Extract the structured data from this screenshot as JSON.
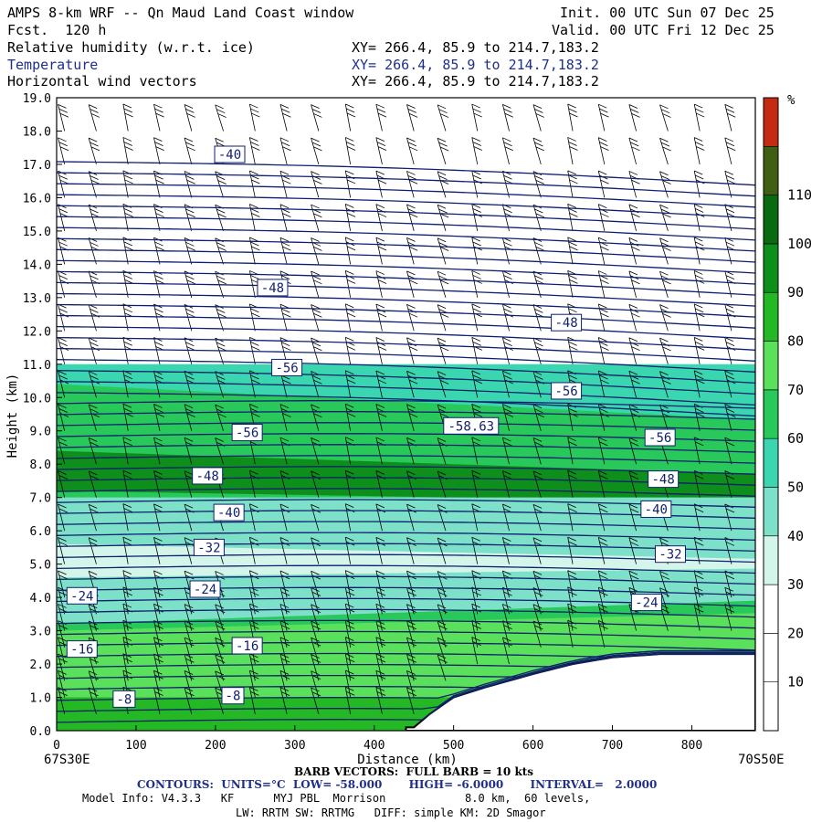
{
  "header": {
    "title_left": "AMPS 8-km WRF -- Qn Maud Land Coast window",
    "forecast": "Fcst.  120 h",
    "init": "Init. 00 UTC Sun 07 Dec 25",
    "valid": "Valid. 00 UTC Fri 12 Dec 25",
    "fields": [
      {
        "name": "Relative humidity (w.r.t. ice)",
        "xy": "XY= 266.4, 85.9 to 214.7,183.2"
      },
      {
        "name": "Temperature",
        "xy": "XY= 266.4, 85.9 to 214.7,183.2"
      },
      {
        "name": "Horizontal wind vectors",
        "xy": "XY= 266.4, 85.9 to 214.7,183.2"
      }
    ]
  },
  "footer": {
    "x_start": "67S30E",
    "x_end": "70S50E",
    "barb": "BARB VECTORS:  FULL BARB = 10 kts",
    "contours": "CONTOURS:  UNITS=°C  LOW= -58.000       HIGH= -6.0000       INTERVAL=   2.0000",
    "model_info": "Model Info: V4.3.3   KF      MYJ PBL  Morrison            8.0 km,  60 levels,",
    "model_info2": "LW: RRTM SW: RRTMG   DIFF: simple KM: 2D Smagor"
  },
  "colors": {
    "temperature_contour": "#0f1f6e",
    "rh_colors": [
      "#ffffff",
      "#ffffff",
      "#ffffff",
      "#d4f5ea",
      "#7de0c9",
      "#3ad6b0",
      "#28c95a",
      "#5ae05a",
      "#24b824",
      "#0e8f1c",
      "#0a6a10",
      "#3f5f12",
      "#c52b12"
    ]
  },
  "chart_data": {
    "type": "contour",
    "title": "Relative humidity (w.r.t. ice) / Temperature / Horizontal wind vectors",
    "xlabel": "Distance (km)",
    "ylabel": "Height (km)",
    "xlim": [
      0,
      880
    ],
    "ylim": [
      0,
      19
    ],
    "x_ticks": [
      0,
      100,
      200,
      300,
      400,
      500,
      600,
      700,
      800
    ],
    "y_ticks": [
      "0.0",
      "1.0",
      "2.0",
      "3.0",
      "4.0",
      "5.0",
      "6.0",
      "7.0",
      "8.0",
      "9.0",
      "10.0",
      "11.0",
      "12.0",
      "13.0",
      "14.0",
      "15.0",
      "16.0",
      "17.0",
      "18.0",
      "19.0"
    ],
    "colorbar": {
      "unit": "%",
      "levels": [
        10,
        20,
        30,
        40,
        50,
        60,
        70,
        80,
        90,
        100,
        110
      ]
    },
    "temperature_contour_labels": [
      {
        "text": "-40",
        "x": 218,
        "y": 17.3
      },
      {
        "text": "-48",
        "x": 272,
        "y": 13.3
      },
      {
        "text": "-48",
        "x": 642,
        "y": 12.25
      },
      {
        "text": "-56",
        "x": 290,
        "y": 10.9
      },
      {
        "text": "-56",
        "x": 642,
        "y": 10.2
      },
      {
        "text": "-58.63",
        "x": 522,
        "y": 9.15
      },
      {
        "text": "-56",
        "x": 240,
        "y": 8.95
      },
      {
        "text": "-56",
        "x": 760,
        "y": 8.8
      },
      {
        "text": "-48",
        "x": 190,
        "y": 7.65
      },
      {
        "text": "-48",
        "x": 764,
        "y": 7.55
      },
      {
        "text": "-40",
        "x": 217,
        "y": 6.55
      },
      {
        "text": "-40",
        "x": 755,
        "y": 6.65
      },
      {
        "text": "-32",
        "x": 192,
        "y": 5.5
      },
      {
        "text": "-32",
        "x": 773,
        "y": 5.3
      },
      {
        "text": "-24",
        "x": 32,
        "y": 4.05
      },
      {
        "text": "-24",
        "x": 187,
        "y": 4.25
      },
      {
        "text": "-24",
        "x": 743,
        "y": 3.85
      },
      {
        "text": "-16",
        "x": 32,
        "y": 2.45
      },
      {
        "text": "-16",
        "x": 240,
        "y": 2.55
      },
      {
        "text": "-8",
        "x": 85,
        "y": 0.95
      },
      {
        "text": "-8",
        "x": 222,
        "y": 1.05
      }
    ],
    "terrain_km": [
      [
        0,
        0.1
      ],
      [
        450,
        0.1
      ],
      [
        470,
        0.5
      ],
      [
        500,
        1.0
      ],
      [
        540,
        1.3
      ],
      [
        600,
        1.7
      ],
      [
        650,
        2.0
      ],
      [
        700,
        2.2
      ],
      [
        760,
        2.3
      ],
      [
        800,
        2.3
      ],
      [
        880,
        2.3
      ]
    ],
    "grid": false
  }
}
